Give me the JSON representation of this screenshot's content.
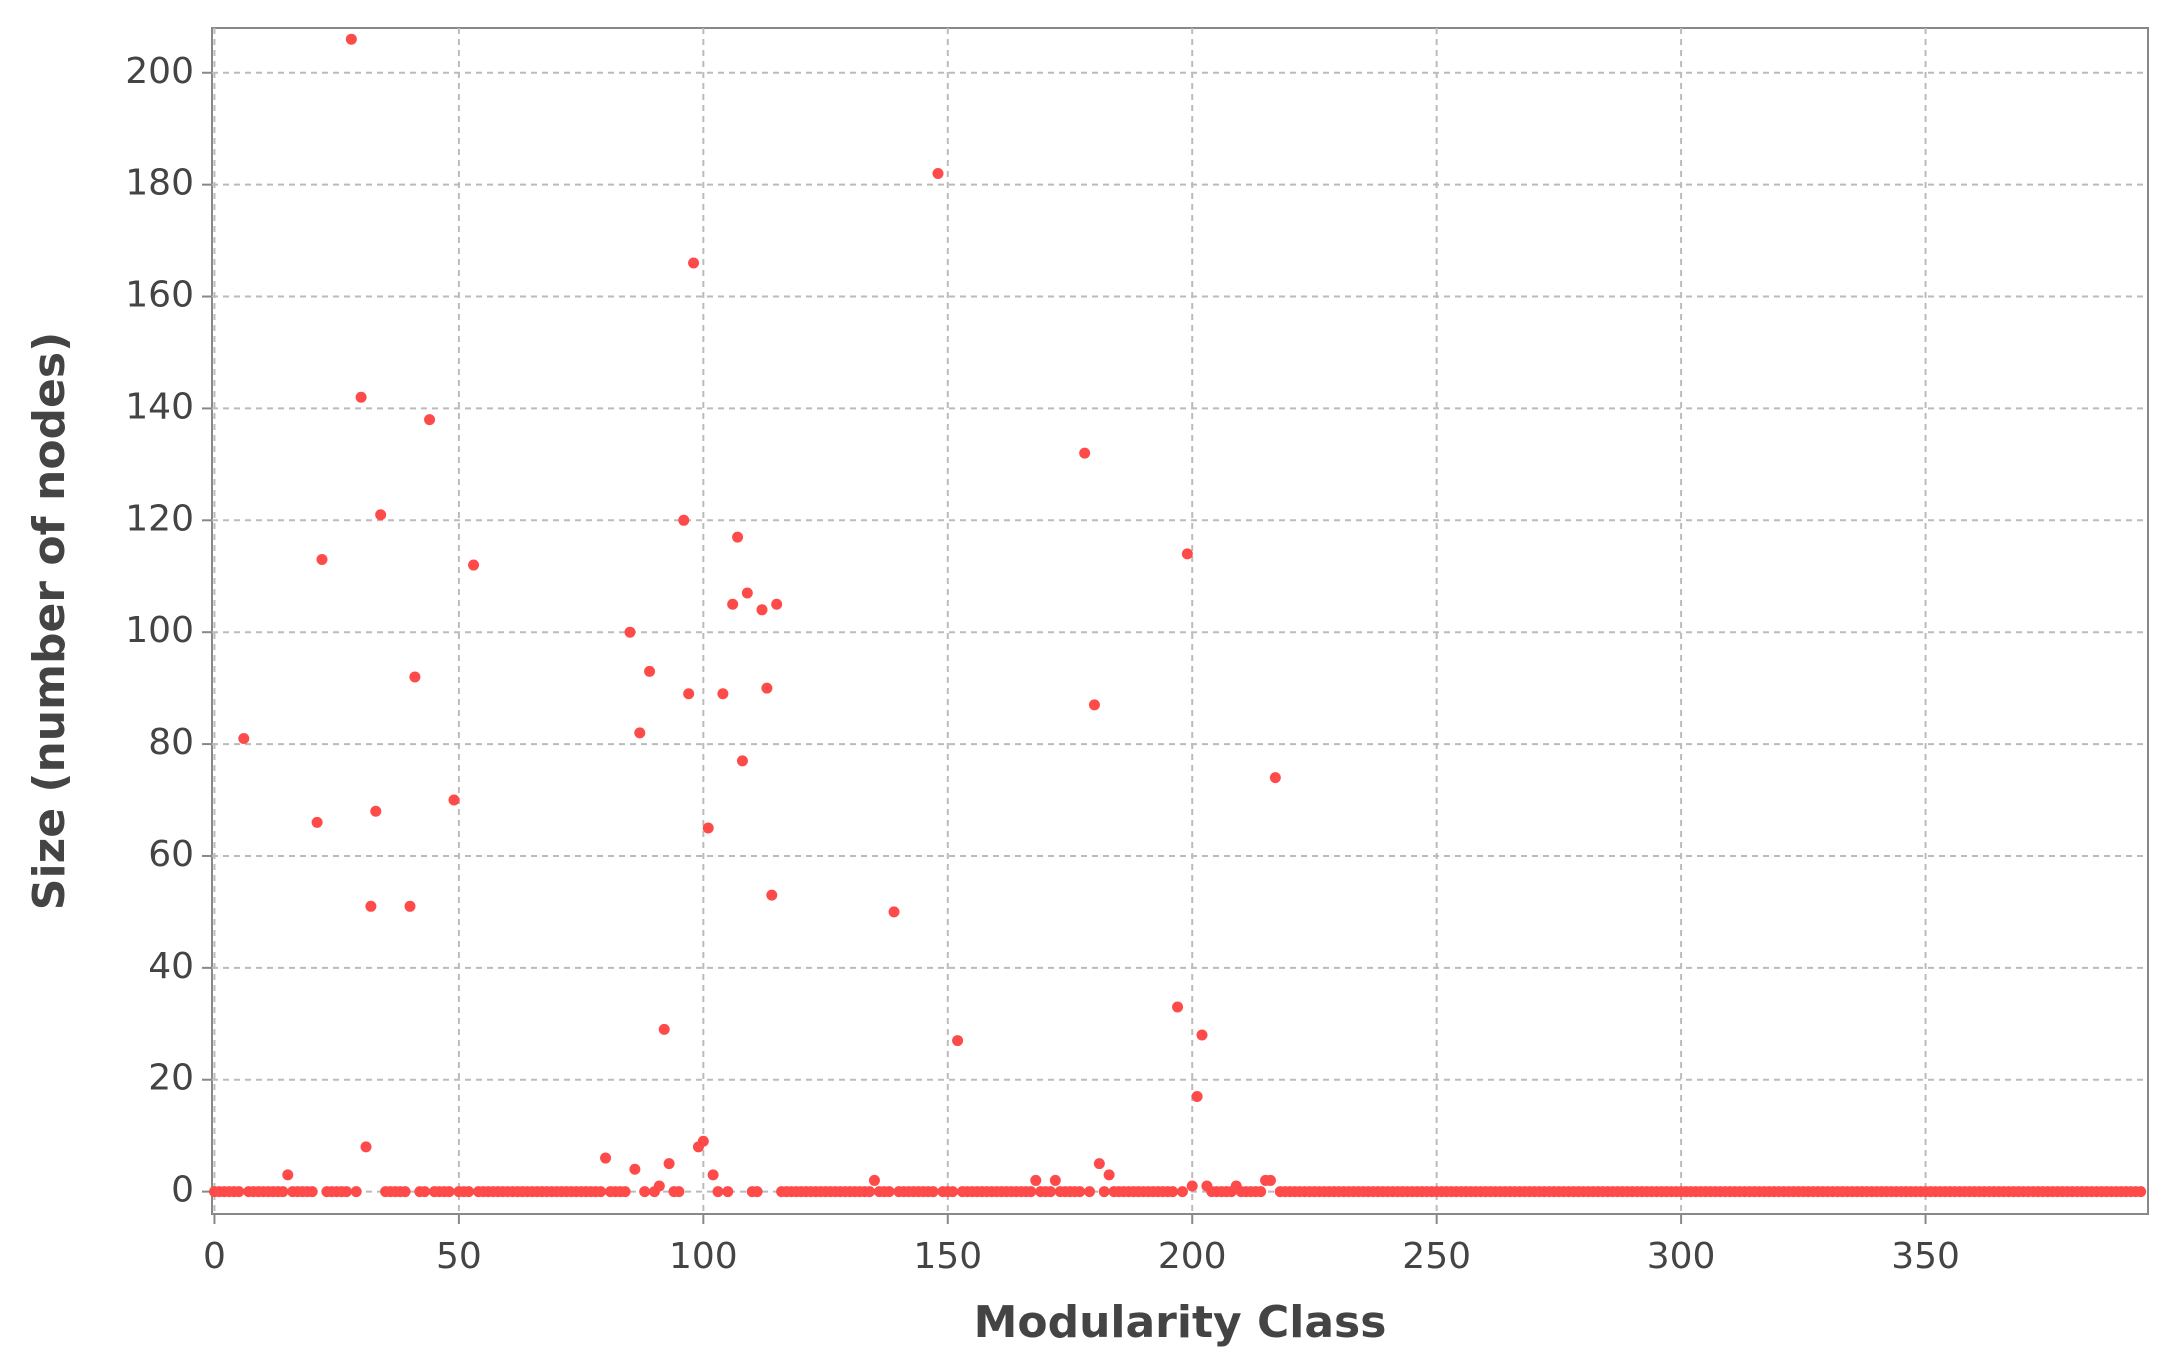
{
  "chart_data": {
    "type": "scatter",
    "x_label": "Modularity Class",
    "y_label": "Size (number of nodes)",
    "color": "#ff4a4a",
    "grid": true,
    "xlim": [
      -0.5,
      395.5
    ],
    "xticks": [
      0,
      50,
      100,
      150,
      200,
      250,
      300,
      350
    ],
    "ylim": [
      -4,
      208
    ],
    "yticks": [
      0,
      20,
      40,
      60,
      80,
      100,
      120,
      140,
      160,
      180,
      200
    ],
    "x": [
      0,
      1,
      2,
      3,
      4,
      5,
      6,
      7,
      8,
      9,
      10,
      11,
      12,
      13,
      14,
      15,
      16,
      17,
      18,
      19,
      20,
      21,
      22,
      23,
      24,
      25,
      26,
      27,
      28,
      29,
      30,
      31,
      32,
      33,
      34,
      35,
      36,
      37,
      38,
      39,
      40,
      41,
      42,
      43,
      44,
      45,
      46,
      47,
      48,
      49,
      50,
      51,
      52,
      53,
      54,
      55,
      56,
      57,
      58,
      59,
      60,
      61,
      62,
      63,
      64,
      65,
      66,
      67,
      68,
      69,
      70,
      71,
      72,
      73,
      74,
      75,
      76,
      77,
      78,
      79,
      80,
      81,
      82,
      83,
      84,
      85,
      86,
      87,
      88,
      89,
      90,
      91,
      92,
      93,
      94,
      95,
      96,
      97,
      98,
      99,
      100,
      101,
      102,
      103,
      104,
      105,
      106,
      107,
      108,
      109,
      110,
      111,
      112,
      113,
      114,
      115,
      116,
      117,
      118,
      119,
      120,
      121,
      122,
      123,
      124,
      125,
      126,
      127,
      128,
      129,
      130,
      131,
      132,
      133,
      134,
      135,
      136,
      137,
      138,
      139,
      140,
      141,
      142,
      143,
      144,
      145,
      146,
      147,
      148,
      149,
      150,
      151,
      152,
      153,
      154,
      155,
      156,
      157,
      158,
      159,
      160,
      161,
      162,
      163,
      164,
      165,
      166,
      167,
      168,
      169,
      170,
      171,
      172,
      173,
      174,
      175,
      176,
      177,
      178,
      179,
      180,
      181,
      182,
      183,
      184,
      185,
      186,
      187,
      188,
      189,
      190,
      191,
      192,
      193,
      194,
      195,
      196,
      197,
      198,
      199,
      200,
      201,
      202,
      203,
      204,
      205,
      206,
      207,
      208,
      209,
      210,
      211,
      212,
      213,
      214,
      215,
      216,
      217,
      218,
      219,
      220,
      221,
      222,
      223,
      224,
      225,
      226,
      227,
      228,
      229,
      230,
      231,
      232,
      233,
      234,
      235,
      236,
      237,
      238,
      239,
      240,
      241,
      242,
      243,
      244,
      245,
      246,
      247,
      248,
      249,
      250,
      251,
      252,
      253,
      254,
      255,
      256,
      257,
      258,
      259,
      260,
      261,
      262,
      263,
      264,
      265,
      266,
      267,
      268,
      269,
      270,
      271,
      272,
      273,
      274,
      275,
      276,
      277,
      278,
      279,
      280,
      281,
      282,
      283,
      284,
      285,
      286,
      287,
      288,
      289,
      290,
      291,
      292,
      293,
      294,
      295,
      296,
      297,
      298,
      299,
      300,
      301,
      302,
      303,
      304,
      305,
      306,
      307,
      308,
      309,
      310,
      311,
      312,
      313,
      314,
      315,
      316,
      317,
      318,
      319,
      320,
      321,
      322,
      323,
      324,
      325,
      326,
      327,
      328,
      329,
      330,
      331,
      332,
      333,
      334,
      335,
      336,
      337,
      338,
      339,
      340,
      341,
      342,
      343,
      344,
      345,
      346,
      347,
      348,
      349,
      350,
      351,
      352,
      353,
      354,
      355,
      356,
      357,
      358,
      359,
      360,
      361,
      362,
      363,
      364,
      365,
      366,
      367,
      368,
      369,
      370,
      371,
      372,
      373,
      374,
      375,
      376,
      377,
      378,
      379,
      380,
      381,
      382,
      383,
      384,
      385,
      386,
      387,
      388,
      389,
      390,
      391,
      392,
      393,
      394
    ],
    "values": [
      0,
      0,
      0,
      0,
      0,
      0,
      81,
      0,
      0,
      0,
      0,
      0,
      0,
      0,
      0,
      3,
      0,
      0,
      0,
      0,
      0,
      66,
      113,
      0,
      0,
      0,
      0,
      0,
      206,
      0,
      142,
      8,
      51,
      68,
      121,
      0,
      0,
      0,
      0,
      0,
      51,
      92,
      0,
      0,
      138,
      0,
      0,
      0,
      0,
      70,
      0,
      0,
      0,
      112,
      0,
      0,
      0,
      0,
      0,
      0,
      0,
      0,
      0,
      0,
      0,
      0,
      0,
      0,
      0,
      0,
      0,
      0,
      0,
      0,
      0,
      0,
      0,
      0,
      0,
      0,
      6,
      0,
      0,
      0,
      0,
      100,
      4,
      82,
      0,
      93,
      0,
      1,
      29,
      5,
      0,
      0,
      120,
      89,
      166,
      8,
      9,
      65,
      3,
      0,
      89,
      0,
      105,
      117,
      77,
      107,
      0,
      0,
      104,
      90,
      53,
      105,
      0,
      0,
      0,
      0,
      0,
      0,
      0,
      0,
      0,
      0,
      0,
      0,
      0,
      0,
      0,
      0,
      0,
      0,
      0,
      2,
      0,
      0,
      0,
      50,
      0,
      0,
      0,
      0,
      0,
      0,
      0,
      0,
      182,
      0,
      0,
      0,
      27,
      0,
      0,
      0,
      0,
      0,
      0,
      0,
      0,
      0,
      0,
      0,
      0,
      0,
      0,
      0,
      2,
      0,
      0,
      0,
      2,
      0,
      0,
      0,
      0,
      0,
      132,
      0,
      87,
      5,
      0,
      3,
      0,
      0,
      0,
      0,
      0,
      0,
      0,
      0,
      0,
      0,
      0,
      0,
      0,
      33,
      0,
      114,
      1,
      17,
      28,
      1,
      0,
      0,
      0,
      0,
      0,
      1,
      0,
      0,
      0,
      0,
      0,
      2,
      2,
      74,
      0,
      0,
      0,
      0,
      0,
      0,
      0,
      0,
      0,
      0,
      0,
      0,
      0,
      0,
      0,
      0,
      0,
      0,
      0,
      0,
      0,
      0,
      0,
      0,
      0,
      0,
      0,
      0,
      0,
      0,
      0,
      0,
      0,
      0,
      0,
      0,
      0,
      0,
      0,
      0,
      0,
      0,
      0,
      0,
      0,
      0,
      0,
      0,
      0,
      0,
      0,
      0,
      0,
      0,
      0,
      0,
      0,
      0,
      0,
      0,
      0,
      0,
      0,
      0,
      0,
      0,
      0,
      0,
      0,
      0,
      0,
      0,
      0,
      0,
      0,
      0,
      0,
      0,
      0,
      0,
      0,
      0,
      0,
      0,
      0,
      0,
      0,
      0,
      0,
      0,
      0,
      0,
      0,
      0,
      0,
      0,
      0,
      0,
      0,
      0,
      0,
      0,
      0,
      0,
      0,
      0,
      0,
      0,
      0,
      0,
      0,
      0,
      0,
      0,
      0,
      0,
      0,
      0,
      0,
      0,
      0,
      0,
      0,
      0,
      0,
      0,
      0,
      0,
      0,
      0,
      0,
      0,
      0,
      0,
      0,
      0,
      0,
      0,
      0,
      0,
      0,
      0,
      0,
      0,
      0,
      0,
      0,
      0,
      0,
      0,
      0,
      0,
      0,
      0,
      0,
      0,
      0,
      0,
      0,
      0,
      0,
      0,
      0,
      0,
      0,
      0,
      0,
      0,
      0,
      0,
      0,
      0,
      0,
      0,
      0,
      0,
      0
    ]
  }
}
